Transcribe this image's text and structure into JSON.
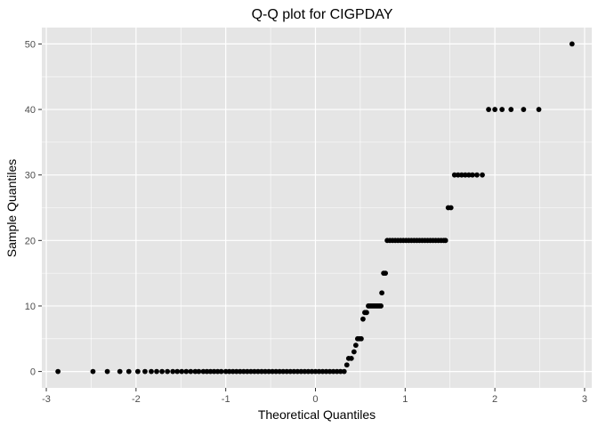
{
  "chart_data": {
    "type": "scatter",
    "title": "Q-Q plot for CIGPDAY",
    "xlabel": "Theoretical Quantiles",
    "ylabel": "Sample Quantiles",
    "xlim": [
      -3.05,
      3.08
    ],
    "ylim": [
      -2.5,
      52.5
    ],
    "x_ticks": [
      -3,
      -2,
      -1,
      0,
      1,
      2,
      3
    ],
    "x_tick_labels": [
      "-3",
      "-2",
      "-1",
      "0",
      "1",
      "2",
      "3"
    ],
    "y_ticks": [
      0,
      10,
      20,
      30,
      40,
      50
    ],
    "y_tick_labels": [
      "0",
      "10",
      "20",
      "30",
      "40",
      "50"
    ],
    "grid": true,
    "legend": "none",
    "colors": {
      "panel": "#e5e5e5",
      "grid": "#ffffff",
      "point": "#000000"
    },
    "series": [
      {
        "points": [
          [
            -2.87,
            0
          ],
          [
            -2.48,
            0
          ],
          [
            -2.32,
            0
          ],
          [
            -2.18,
            0
          ],
          [
            -2.08,
            0
          ],
          [
            -1.98,
            0
          ],
          [
            -1.9,
            0
          ],
          [
            -1.83,
            0
          ],
          [
            -1.77,
            0
          ],
          [
            -1.71,
            0
          ],
          [
            -1.65,
            0
          ],
          [
            -1.59,
            0
          ],
          [
            -1.54,
            0
          ],
          [
            -1.49,
            0
          ],
          [
            -1.44,
            0
          ],
          [
            -1.39,
            0
          ],
          [
            -1.34,
            0
          ],
          [
            -1.3,
            0
          ],
          [
            -1.25,
            0
          ],
          [
            -1.21,
            0
          ],
          [
            -1.17,
            0
          ],
          [
            -1.13,
            0
          ],
          [
            -1.09,
            0
          ],
          [
            -1.05,
            0
          ],
          [
            -1.0,
            0
          ],
          [
            -0.96,
            0
          ],
          [
            -0.92,
            0
          ],
          [
            -0.88,
            0
          ],
          [
            -0.84,
            0
          ],
          [
            -0.8,
            0
          ],
          [
            -0.76,
            0
          ],
          [
            -0.72,
            0
          ],
          [
            -0.68,
            0
          ],
          [
            -0.64,
            0
          ],
          [
            -0.6,
            0
          ],
          [
            -0.56,
            0
          ],
          [
            -0.52,
            0
          ],
          [
            -0.48,
            0
          ],
          [
            -0.44,
            0
          ],
          [
            -0.4,
            0
          ],
          [
            -0.36,
            0
          ],
          [
            -0.32,
            0
          ],
          [
            -0.28,
            0
          ],
          [
            -0.24,
            0
          ],
          [
            -0.2,
            0
          ],
          [
            -0.16,
            0
          ],
          [
            -0.12,
            0
          ],
          [
            -0.08,
            0
          ],
          [
            -0.04,
            0
          ],
          [
            0.0,
            0
          ],
          [
            0.04,
            0
          ],
          [
            0.08,
            0
          ],
          [
            0.12,
            0
          ],
          [
            0.16,
            0
          ],
          [
            0.2,
            0
          ],
          [
            0.24,
            0
          ],
          [
            0.28,
            0
          ],
          [
            0.32,
            0
          ],
          [
            0.35,
            1
          ],
          [
            0.37,
            2
          ],
          [
            0.4,
            2
          ],
          [
            0.43,
            3
          ],
          [
            0.45,
            4
          ],
          [
            0.47,
            5
          ],
          [
            0.49,
            5
          ],
          [
            0.51,
            5
          ],
          [
            0.53,
            8
          ],
          [
            0.55,
            9
          ],
          [
            0.57,
            9
          ],
          [
            0.59,
            10
          ],
          [
            0.61,
            10
          ],
          [
            0.63,
            10
          ],
          [
            0.65,
            10
          ],
          [
            0.67,
            10
          ],
          [
            0.69,
            10
          ],
          [
            0.71,
            10
          ],
          [
            0.73,
            10
          ],
          [
            0.74,
            12
          ],
          [
            0.76,
            15
          ],
          [
            0.78,
            15
          ],
          [
            0.8,
            20
          ],
          [
            0.83,
            20
          ],
          [
            0.86,
            20
          ],
          [
            0.89,
            20
          ],
          [
            0.92,
            20
          ],
          [
            0.95,
            20
          ],
          [
            0.98,
            20
          ],
          [
            1.01,
            20
          ],
          [
            1.04,
            20
          ],
          [
            1.07,
            20
          ],
          [
            1.1,
            20
          ],
          [
            1.13,
            20
          ],
          [
            1.16,
            20
          ],
          [
            1.19,
            20
          ],
          [
            1.22,
            20
          ],
          [
            1.25,
            20
          ],
          [
            1.28,
            20
          ],
          [
            1.31,
            20
          ],
          [
            1.34,
            20
          ],
          [
            1.37,
            20
          ],
          [
            1.4,
            20
          ],
          [
            1.43,
            20
          ],
          [
            1.45,
            20
          ],
          [
            1.48,
            25
          ],
          [
            1.51,
            25
          ],
          [
            1.55,
            30
          ],
          [
            1.59,
            30
          ],
          [
            1.63,
            30
          ],
          [
            1.67,
            30
          ],
          [
            1.71,
            30
          ],
          [
            1.75,
            30
          ],
          [
            1.8,
            30
          ],
          [
            1.86,
            30
          ],
          [
            1.93,
            40
          ],
          [
            2.0,
            40
          ],
          [
            2.08,
            40
          ],
          [
            2.18,
            40
          ],
          [
            2.32,
            40
          ],
          [
            2.49,
            40
          ],
          [
            2.86,
            50
          ]
        ]
      }
    ]
  }
}
